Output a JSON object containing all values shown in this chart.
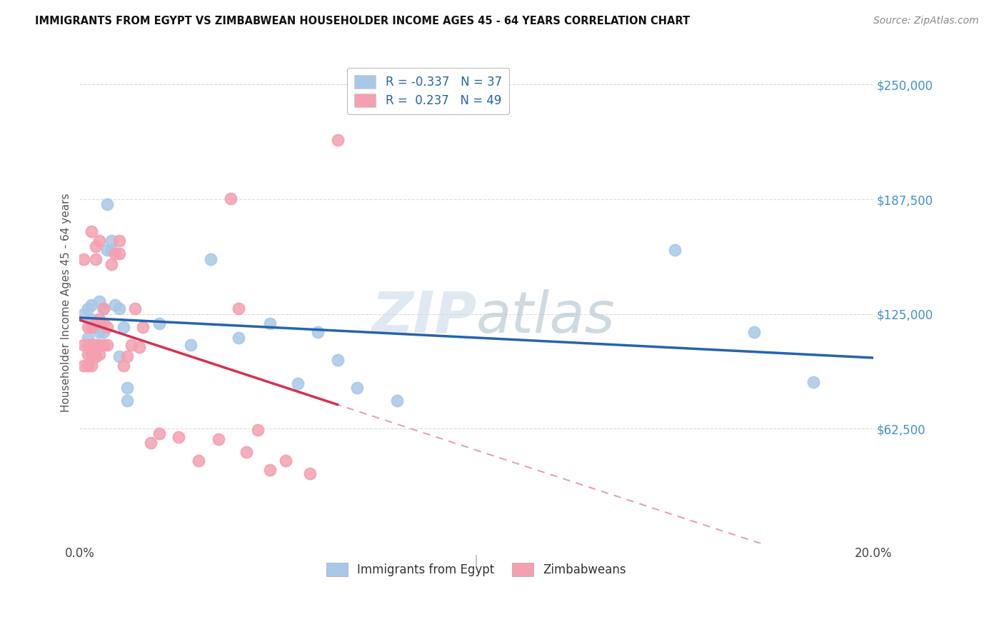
{
  "title": "IMMIGRANTS FROM EGYPT VS ZIMBABWEAN HOUSEHOLDER INCOME AGES 45 - 64 YEARS CORRELATION CHART",
  "source": "Source: ZipAtlas.com",
  "ylabel": "Householder Income Ages 45 - 64 years",
  "xlim": [
    0.0,
    0.2
  ],
  "ylim": [
    0,
    262500
  ],
  "ytick_values": [
    62500,
    125000,
    187500,
    250000
  ],
  "ytick_labels": [
    "$62,500",
    "$125,000",
    "$187,500",
    "$250,000"
  ],
  "legend1_label": "R = -0.337   N = 37",
  "legend2_label": "R =  0.237   N = 49",
  "bottom_legend1": "Immigrants from Egypt",
  "bottom_legend2": "Zimbabweans",
  "watermark_zip": "ZIP",
  "watermark_atlas": "atlas",
  "blue_scatter_color": "#a8c8e8",
  "pink_scatter_color": "#f4a0b0",
  "blue_line_color": "#2563ae",
  "pink_line_color": "#d63050",
  "pink_dashed_color": "#e8a0b0",
  "ytick_color": "#4090d0",
  "egypt_x": [
    0.001,
    0.002,
    0.002,
    0.003,
    0.003,
    0.003,
    0.004,
    0.004,
    0.004,
    0.005,
    0.005,
    0.005,
    0.006,
    0.006,
    0.007,
    0.007,
    0.008,
    0.008,
    0.009,
    0.01,
    0.01,
    0.011,
    0.012,
    0.012,
    0.02,
    0.028,
    0.033,
    0.04,
    0.048,
    0.055,
    0.06,
    0.065,
    0.07,
    0.08,
    0.15,
    0.17,
    0.185
  ],
  "egypt_y": [
    125000,
    112000,
    128000,
    118000,
    122000,
    130000,
    102000,
    108000,
    118000,
    115000,
    120000,
    132000,
    115000,
    128000,
    160000,
    185000,
    160000,
    165000,
    130000,
    102000,
    128000,
    118000,
    85000,
    78000,
    120000,
    108000,
    155000,
    112000,
    120000,
    87000,
    115000,
    100000,
    85000,
    78000,
    160000,
    115000,
    88000
  ],
  "zimbabwe_x": [
    0.001,
    0.001,
    0.001,
    0.002,
    0.002,
    0.002,
    0.002,
    0.003,
    0.003,
    0.003,
    0.003,
    0.003,
    0.004,
    0.004,
    0.004,
    0.004,
    0.004,
    0.005,
    0.005,
    0.005,
    0.005,
    0.006,
    0.006,
    0.006,
    0.007,
    0.007,
    0.008,
    0.009,
    0.01,
    0.01,
    0.011,
    0.012,
    0.013,
    0.014,
    0.015,
    0.016,
    0.018,
    0.02,
    0.025,
    0.03,
    0.035,
    0.038,
    0.04,
    0.042,
    0.045,
    0.048,
    0.052,
    0.058,
    0.065
  ],
  "zimbabwe_y": [
    97000,
    108000,
    155000,
    97000,
    103000,
    108000,
    118000,
    97000,
    103000,
    108000,
    118000,
    170000,
    102000,
    108000,
    120000,
    155000,
    162000,
    103000,
    108000,
    122000,
    165000,
    120000,
    128000,
    108000,
    108000,
    118000,
    152000,
    158000,
    158000,
    165000,
    97000,
    102000,
    108000,
    128000,
    107000,
    118000,
    55000,
    60000,
    58000,
    45000,
    57000,
    188000,
    128000,
    50000,
    62000,
    40000,
    45000,
    38000,
    220000
  ]
}
